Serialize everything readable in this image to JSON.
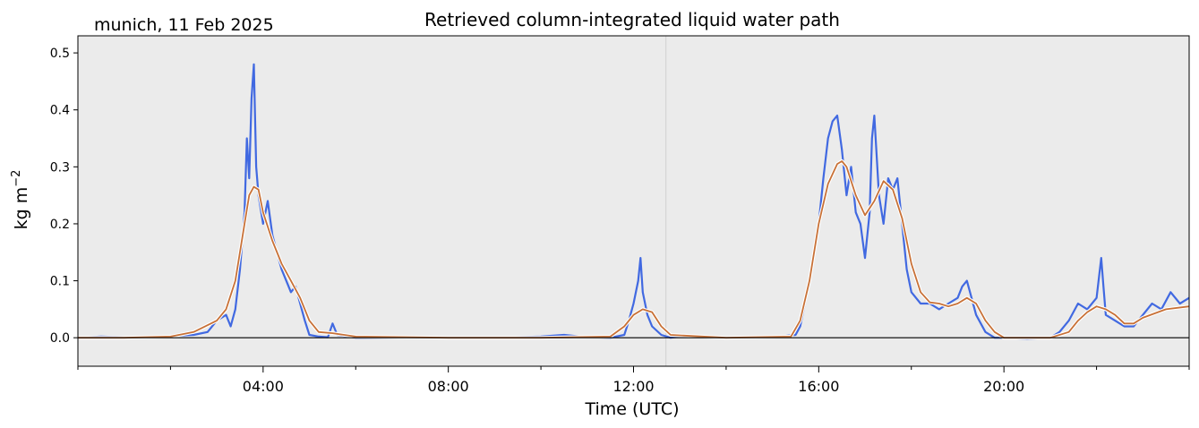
{
  "chart_data": {
    "type": "line",
    "title": "Retrieved column-integrated liquid water path",
    "location_date": "munich, 11 Feb 2025",
    "xlabel": "Time (UTC)",
    "ylabel_base": "kg m",
    "ylabel_exp": "−2",
    "xlim": [
      0,
      24
    ],
    "ylim": [
      -0.05,
      0.53
    ],
    "x_ticks": [
      {
        "value": 4,
        "label": "04:00"
      },
      {
        "value": 8,
        "label": "08:00"
      },
      {
        "value": 12,
        "label": "12:00"
      },
      {
        "value": 16,
        "label": "16:00"
      },
      {
        "value": 20,
        "label": "20:00"
      }
    ],
    "y_ticks": [
      {
        "value": 0.0,
        "label": "0.0"
      },
      {
        "value": 0.1,
        "label": "0.1"
      },
      {
        "value": 0.2,
        "label": "0.2"
      },
      {
        "value": 0.3,
        "label": "0.3"
      },
      {
        "value": 0.4,
        "label": "0.4"
      },
      {
        "value": 0.5,
        "label": "0.5"
      }
    ],
    "grid": false,
    "zero_line": true,
    "vertical_marker_x": 12.7,
    "background_color": "#ebebeb",
    "series": [
      {
        "style": "raw",
        "color": "#4169e1",
        "x": [
          0.0,
          0.5,
          1.0,
          1.5,
          2.0,
          2.5,
          2.8,
          3.0,
          3.2,
          3.3,
          3.4,
          3.5,
          3.6,
          3.65,
          3.7,
          3.75,
          3.8,
          3.85,
          3.9,
          4.0,
          4.1,
          4.2,
          4.3,
          4.4,
          4.5,
          4.6,
          4.7,
          4.8,
          4.9,
          5.0,
          5.2,
          5.4,
          5.5,
          5.6,
          6.0,
          7.0,
          8.0,
          9.0,
          10.0,
          10.5,
          11.0,
          11.5,
          11.8,
          11.9,
          12.0,
          12.1,
          12.15,
          12.2,
          12.3,
          12.4,
          12.6,
          12.8,
          13.0,
          14.0,
          15.0,
          15.5,
          15.6,
          15.8,
          16.0,
          16.1,
          16.2,
          16.3,
          16.4,
          16.5,
          16.6,
          16.7,
          16.8,
          16.9,
          17.0,
          17.1,
          17.15,
          17.2,
          17.3,
          17.4,
          17.5,
          17.6,
          17.7,
          17.8,
          17.9,
          18.0,
          18.2,
          18.4,
          18.6,
          18.8,
          19.0,
          19.1,
          19.2,
          19.3,
          19.4,
          19.6,
          19.8,
          20.0,
          20.5,
          21.0,
          21.2,
          21.4,
          21.6,
          21.8,
          22.0,
          22.1,
          22.15,
          22.2,
          22.4,
          22.6,
          22.8,
          23.0,
          23.2,
          23.4,
          23.6,
          23.8,
          24.0
        ],
        "y": [
          0.0,
          0.002,
          0.001,
          0.0,
          0.003,
          0.005,
          0.01,
          0.03,
          0.04,
          0.02,
          0.05,
          0.12,
          0.22,
          0.35,
          0.28,
          0.42,
          0.48,
          0.3,
          0.25,
          0.2,
          0.24,
          0.18,
          0.15,
          0.12,
          0.1,
          0.08,
          0.09,
          0.06,
          0.03,
          0.005,
          0.002,
          0.001,
          0.025,
          0.005,
          0.0,
          0.0,
          0.001,
          0.0,
          0.002,
          0.005,
          0.001,
          0.0,
          0.005,
          0.03,
          0.06,
          0.1,
          0.14,
          0.08,
          0.04,
          0.02,
          0.005,
          0.0,
          0.002,
          0.0,
          0.001,
          0.005,
          0.02,
          0.1,
          0.2,
          0.28,
          0.35,
          0.38,
          0.39,
          0.33,
          0.25,
          0.3,
          0.22,
          0.2,
          0.14,
          0.22,
          0.35,
          0.39,
          0.25,
          0.2,
          0.28,
          0.26,
          0.28,
          0.2,
          0.12,
          0.08,
          0.06,
          0.06,
          0.05,
          0.06,
          0.07,
          0.09,
          0.1,
          0.07,
          0.04,
          0.01,
          0.0,
          0.0,
          -0.002,
          0.0,
          0.01,
          0.03,
          0.06,
          0.05,
          0.07,
          0.14,
          0.09,
          0.04,
          0.03,
          0.02,
          0.02,
          0.04,
          0.06,
          0.05,
          0.08,
          0.06,
          0.07
        ]
      },
      {
        "style": "smoothed",
        "color": "#c87137",
        "x": [
          0.0,
          1.0,
          2.0,
          2.5,
          3.0,
          3.2,
          3.4,
          3.6,
          3.7,
          3.8,
          3.9,
          4.0,
          4.2,
          4.4,
          4.6,
          4.8,
          5.0,
          5.2,
          5.5,
          6.0,
          8.0,
          10.0,
          11.5,
          11.8,
          12.0,
          12.2,
          12.4,
          12.6,
          12.8,
          14.0,
          15.4,
          15.6,
          15.8,
          16.0,
          16.2,
          16.4,
          16.5,
          16.6,
          16.8,
          17.0,
          17.2,
          17.4,
          17.6,
          17.8,
          18.0,
          18.2,
          18.4,
          18.6,
          18.8,
          19.0,
          19.2,
          19.4,
          19.6,
          19.8,
          20.0,
          21.0,
          21.4,
          21.6,
          21.8,
          22.0,
          22.2,
          22.4,
          22.6,
          22.8,
          23.0,
          23.5,
          24.0
        ],
        "y": [
          0.0,
          0.0,
          0.002,
          0.01,
          0.03,
          0.05,
          0.1,
          0.2,
          0.25,
          0.265,
          0.26,
          0.22,
          0.17,
          0.13,
          0.1,
          0.07,
          0.03,
          0.01,
          0.008,
          0.002,
          0.0,
          0.0,
          0.002,
          0.02,
          0.04,
          0.05,
          0.045,
          0.02,
          0.005,
          0.0,
          0.002,
          0.03,
          0.1,
          0.2,
          0.27,
          0.305,
          0.31,
          0.3,
          0.25,
          0.215,
          0.24,
          0.275,
          0.26,
          0.21,
          0.13,
          0.08,
          0.062,
          0.06,
          0.055,
          0.06,
          0.07,
          0.06,
          0.03,
          0.01,
          0.0,
          0.0,
          0.01,
          0.03,
          0.045,
          0.055,
          0.05,
          0.04,
          0.025,
          0.025,
          0.035,
          0.05,
          0.055
        ]
      }
    ]
  }
}
